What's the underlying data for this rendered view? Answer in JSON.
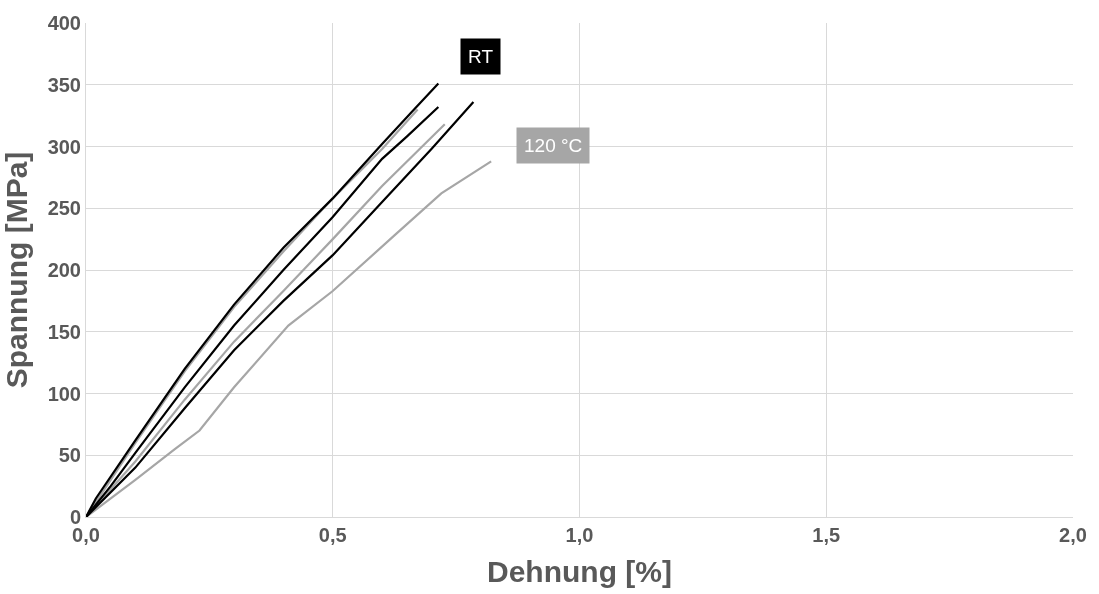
{
  "chart_data": {
    "type": "line",
    "xlabel": "Dehnung [%]",
    "ylabel": "Spannung [MPa]",
    "xlim": [
      0,
      2
    ],
    "xticks": [
      {
        "value": 0,
        "label": "0,0"
      },
      {
        "value": 0.5,
        "label": "0,5"
      },
      {
        "value": 1,
        "label": "1,0"
      },
      {
        "value": 1.5,
        "label": "1,5"
      },
      {
        "value": 2,
        "label": "2,0"
      }
    ],
    "ylim": [
      0,
      400
    ],
    "yticks": [
      0,
      50,
      100,
      150,
      200,
      250,
      300,
      350,
      400
    ],
    "grid": true,
    "marker": "none",
    "line_style": "solid",
    "series": [
      {
        "color": "#a6a6a6",
        "x": [
          0,
          0.1,
          0.2,
          0.3,
          0.4,
          0.5,
          0.6,
          0.672
        ],
        "values": [
          0,
          60,
          118,
          170,
          215,
          258,
          298,
          330
        ]
      },
      {
        "color": "#a6a6a6",
        "x": [
          0,
          0.1,
          0.2,
          0.3,
          0.4,
          0.5,
          0.6,
          0.727
        ],
        "values": [
          0,
          45,
          95,
          142,
          183,
          225,
          268,
          318
        ]
      },
      {
        "color": "#a6a6a6",
        "x": [
          0,
          0.1,
          0.18,
          0.23,
          0.3,
          0.41,
          0.5,
          0.625,
          0.72,
          0.821
        ],
        "values": [
          0,
          30,
          55,
          70,
          105,
          155,
          183,
          228,
          262,
          288
        ]
      },
      {
        "color": "#000000",
        "x": [
          0,
          0.02,
          0.1,
          0.2,
          0.3,
          0.4,
          0.5,
          0.6,
          0.66,
          0.714
        ],
        "values": [
          0,
          15,
          62,
          120,
          172,
          218,
          258,
          302,
          328,
          351
        ]
      },
      {
        "color": "#000000",
        "x": [
          0,
          0.05,
          0.1,
          0.2,
          0.3,
          0.4,
          0.5,
          0.6,
          0.65,
          0.714
        ],
        "values": [
          0,
          25,
          52,
          105,
          155,
          200,
          243,
          290,
          308,
          332
        ]
      },
      {
        "color": "#000000",
        "x": [
          0,
          0.1,
          0.2,
          0.3,
          0.4,
          0.5,
          0.6,
          0.7,
          0.785
        ],
        "values": [
          0,
          40,
          88,
          135,
          175,
          212,
          255,
          298,
          336
        ]
      }
    ],
    "annotations": [
      "RT",
      "120 °C"
    ]
  }
}
